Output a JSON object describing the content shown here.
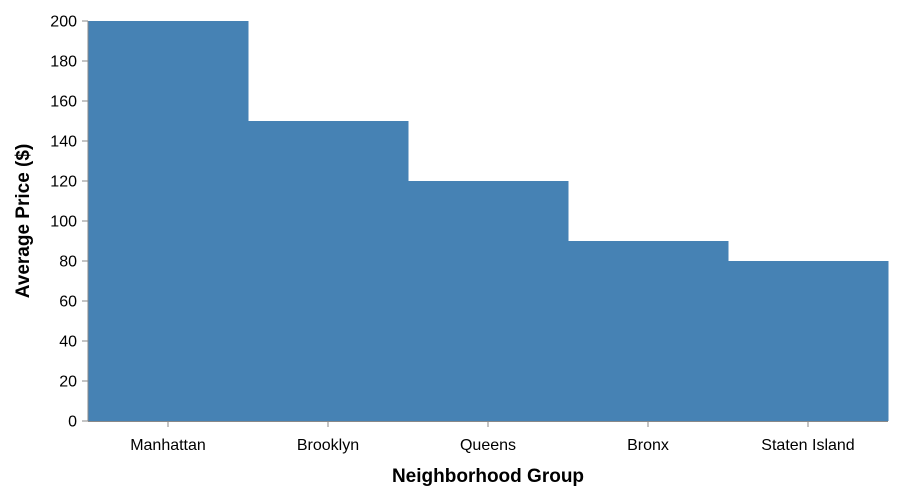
{
  "chart_data": {
    "type": "bar",
    "categories": [
      "Manhattan",
      "Brooklyn",
      "Queens",
      "Bronx",
      "Staten Island"
    ],
    "values": [
      200,
      150,
      120,
      90,
      80
    ],
    "xlabel": "Neighborhood Group",
    "ylabel": "Average Price ($)",
    "ylim": [
      0,
      200
    ],
    "yticks": [
      0,
      20,
      40,
      60,
      80,
      100,
      120,
      140,
      160,
      180,
      200
    ],
    "bar_color": "#4682b4",
    "grid": false,
    "legend": "none"
  }
}
